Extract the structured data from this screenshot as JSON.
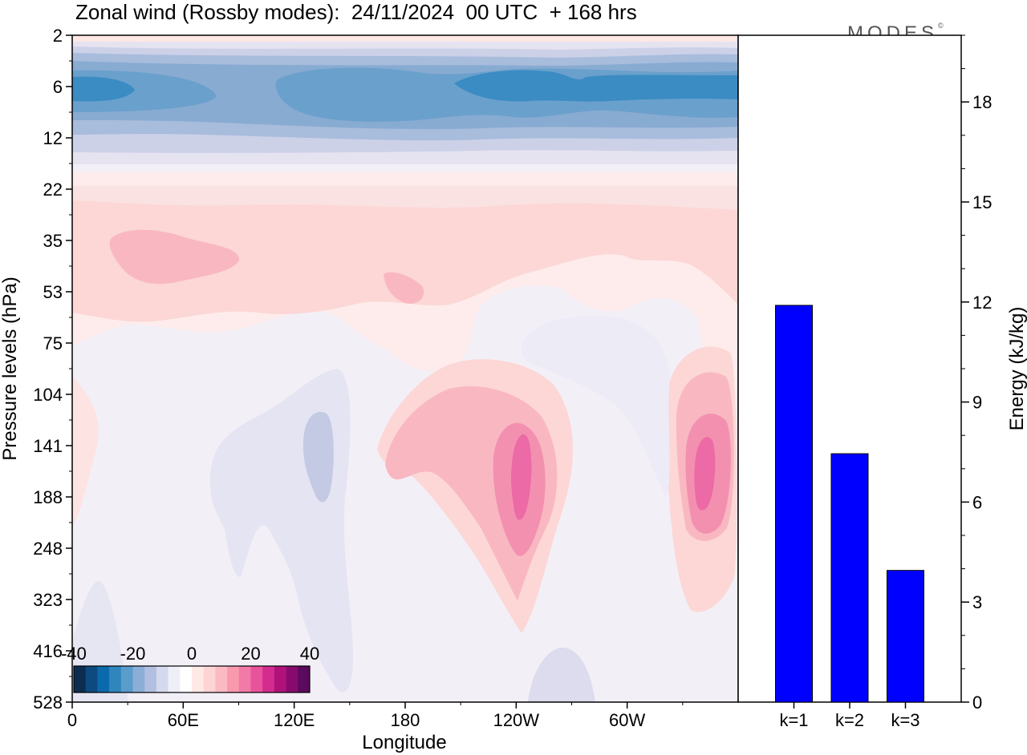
{
  "title": "Zonal wind (Rossby modes):  24/11/2024  00 UTC  + 168 hrs",
  "logo_text": "MODES",
  "logo_mark": "©",
  "chart_data": [
    {
      "type": "heatmap",
      "xlabel": "Longitude",
      "ylabel": "Pressure levels (hPa)",
      "x_ticks": [
        "0",
        "60E",
        "120E",
        "180",
        "120W",
        "60W"
      ],
      "y_ticks": [
        "2",
        "6",
        "12",
        "22",
        "35",
        "53",
        "75",
        "104",
        "141",
        "188",
        "248",
        "323",
        "416",
        "528"
      ],
      "colorbar": {
        "labels": [
          "-40",
          "-20",
          "0",
          "20",
          "40"
        ],
        "colors": [
          "#0c2d50",
          "#0e4a7f",
          "#0b6aac",
          "#2f86bd",
          "#5a9ccc",
          "#8aaed6",
          "#b2bfe0",
          "#d4d9ee",
          "#eeeef7",
          "#ffffff",
          "#ffe9e6",
          "#fdd4d4",
          "#fbbac3",
          "#f899ad",
          "#f27aa6",
          "#e8549b",
          "#d42c8e",
          "#b0127a",
          "#870b6e",
          "#5a0b5e"
        ]
      }
    },
    {
      "type": "bar",
      "categories": [
        "k=1",
        "k=2",
        "k=3"
      ],
      "values": [
        11.9,
        7.45,
        3.95
      ],
      "ylabel": "Energy (kJ/kg)",
      "ylim": [
        0,
        20
      ],
      "y_ticks": [
        "0",
        "3",
        "6",
        "9",
        "12",
        "15",
        "18"
      ],
      "bar_color": "#0000ff"
    }
  ]
}
